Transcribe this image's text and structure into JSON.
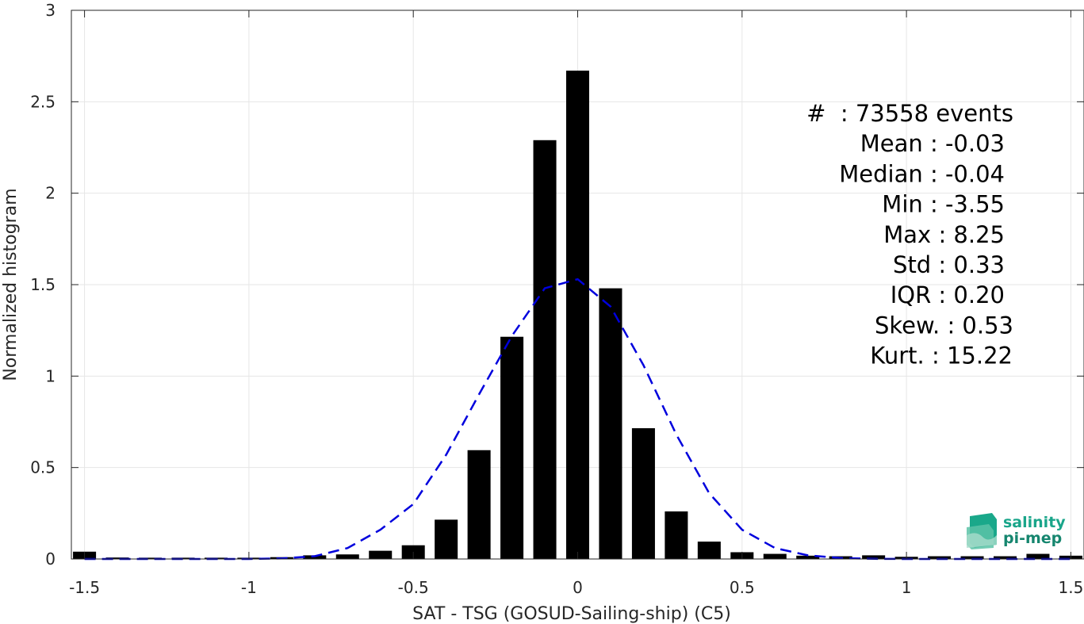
{
  "chart_data": {
    "type": "bar",
    "xlabel": "SAT - TSG (GOSUD-Sailing-ship) (C5)",
    "ylabel": "Normalized histogram",
    "xlim": [
      -1.54,
      1.54
    ],
    "ylim": [
      0,
      3
    ],
    "xticks": [
      -1.5,
      -1,
      -0.5,
      0,
      0.5,
      1,
      1.5
    ],
    "xtick_labels": [
      "-1.5",
      "-1",
      "-0.5",
      "0",
      "0.5",
      "1",
      "1.5"
    ],
    "yticks": [
      0,
      0.5,
      1,
      1.5,
      2,
      2.5,
      3
    ],
    "ytick_labels": [
      "0",
      "0.5",
      "1",
      "1.5",
      "2",
      "2.5",
      "3"
    ],
    "grid": true,
    "bar_width": 0.07,
    "bar_color": "#000000",
    "bins": [
      {
        "x": -1.5,
        "y": 0.04
      },
      {
        "x": -1.4,
        "y": 0.008
      },
      {
        "x": -1.3,
        "y": 0.007
      },
      {
        "x": -1.2,
        "y": 0.007
      },
      {
        "x": -1.1,
        "y": 0.007
      },
      {
        "x": -1.0,
        "y": 0.007
      },
      {
        "x": -0.9,
        "y": 0.01
      },
      {
        "x": -0.8,
        "y": 0.02
      },
      {
        "x": -0.7,
        "y": 0.025
      },
      {
        "x": -0.6,
        "y": 0.045
      },
      {
        "x": -0.5,
        "y": 0.075
      },
      {
        "x": -0.4,
        "y": 0.215
      },
      {
        "x": -0.3,
        "y": 0.595
      },
      {
        "x": -0.2,
        "y": 1.215
      },
      {
        "x": -0.1,
        "y": 2.29
      },
      {
        "x": 0.0,
        "y": 2.67
      },
      {
        "x": 0.1,
        "y": 1.48
      },
      {
        "x": 0.2,
        "y": 0.715
      },
      {
        "x": 0.3,
        "y": 0.26
      },
      {
        "x": 0.4,
        "y": 0.095
      },
      {
        "x": 0.5,
        "y": 0.037
      },
      {
        "x": 0.6,
        "y": 0.028
      },
      {
        "x": 0.7,
        "y": 0.018
      },
      {
        "x": 0.8,
        "y": 0.015
      },
      {
        "x": 0.9,
        "y": 0.02
      },
      {
        "x": 1.0,
        "y": 0.012
      },
      {
        "x": 1.1,
        "y": 0.015
      },
      {
        "x": 1.2,
        "y": 0.015
      },
      {
        "x": 1.3,
        "y": 0.015
      },
      {
        "x": 1.4,
        "y": 0.028
      },
      {
        "x": 1.5,
        "y": 0.018
      }
    ],
    "fit_curve": {
      "style": "dashed",
      "color": "#0000dd",
      "x": [
        -1.5,
        -1.4,
        -1.3,
        -1.2,
        -1.1,
        -1.0,
        -0.9,
        -0.8,
        -0.7,
        -0.6,
        -0.5,
        -0.4,
        -0.3,
        -0.2,
        -0.1,
        0.0,
        0.1,
        0.2,
        0.3,
        0.4,
        0.5,
        0.6,
        0.7,
        0.8,
        0.9,
        1.0,
        1.1,
        1.2,
        1.3,
        1.4,
        1.5
      ],
      "y": [
        0.0,
        0.0,
        0.0,
        0.0,
        0.0,
        0.0,
        0.003,
        0.015,
        0.06,
        0.16,
        0.3,
        0.57,
        0.9,
        1.22,
        1.48,
        1.53,
        1.38,
        1.06,
        0.68,
        0.36,
        0.16,
        0.06,
        0.02,
        0.005,
        0.001,
        0.0,
        0.0,
        0.0,
        0.0,
        0.0,
        0.0
      ]
    },
    "stats_color": "#000000",
    "stats": [
      "#  : 73558 events",
      "Mean : -0.03",
      "Median : -0.04",
      "Min : -3.55",
      "Max : 8.25",
      "Std : 0.33",
      "IQR : 0.20",
      "Skew. : 0.53",
      "Kurt. : 15.22"
    ]
  },
  "logo": {
    "line1": "salinity",
    "line2": "pi-mep"
  }
}
